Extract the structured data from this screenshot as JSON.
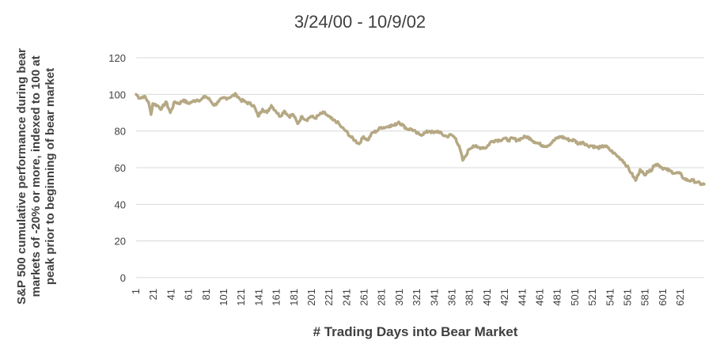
{
  "chart_data": {
    "type": "line",
    "title": "3/24/00 - 10/9/02",
    "xlabel": "# Trading Days into Bear Market",
    "ylabel_lines": [
      "S&P 500 cumulative performance during bear",
      "markets of -20% or more, indexed to 100 at",
      "peak prior to beginning of bear market"
    ],
    "ylim": [
      0,
      120
    ],
    "yticks": [
      "0",
      "20",
      "40",
      "60",
      "80",
      "100",
      "120"
    ],
    "xlim": [
      1,
      648
    ],
    "xticks": [
      "1",
      "21",
      "41",
      "61",
      "81",
      "101",
      "121",
      "141",
      "161",
      "181",
      "201",
      "221",
      "241",
      "261",
      "281",
      "301",
      "321",
      "341",
      "361",
      "381",
      "401",
      "421",
      "441",
      "461",
      "481",
      "501",
      "521",
      "541",
      "561",
      "581",
      "601",
      "621"
    ],
    "grid": "horizontal",
    "line_color": "#b5a883",
    "series": [
      {
        "x": [
          1,
          5,
          10,
          15,
          18,
          20,
          25,
          30,
          35,
          40,
          45,
          50,
          55,
          60,
          65,
          70,
          75,
          80,
          85,
          90,
          95,
          100,
          105,
          110,
          115,
          120,
          125,
          130,
          135,
          140,
          145,
          150,
          155,
          160,
          165,
          170,
          175,
          180,
          185,
          190,
          195,
          200,
          205,
          210,
          215,
          220,
          225,
          230,
          235,
          240,
          245,
          250,
          255,
          260,
          265,
          270,
          275,
          280,
          285,
          290,
          295,
          300,
          305,
          310,
          315,
          320,
          325,
          330,
          335,
          340,
          345,
          350,
          355,
          360,
          365,
          370,
          373,
          376,
          380,
          385,
          390,
          395,
          400,
          405,
          410,
          415,
          420,
          425,
          430,
          435,
          440,
          445,
          450,
          455,
          460,
          465,
          470,
          475,
          480,
          485,
          490,
          495,
          500,
          505,
          510,
          515,
          520,
          525,
          530,
          535,
          540,
          545,
          550,
          555,
          560,
          565,
          570,
          575,
          580,
          583,
          587,
          590,
          595,
          600,
          605,
          610,
          615,
          620,
          625,
          630,
          635,
          640,
          645,
          648
        ],
        "y": [
          100,
          98,
          99,
          96,
          89,
          95,
          94,
          92,
          96,
          90,
          96,
          95,
          97,
          95,
          96,
          97,
          97,
          99,
          97,
          94,
          96,
          98,
          98,
          99,
          100,
          97,
          96,
          95,
          94,
          88,
          92,
          90,
          94,
          91,
          88,
          91,
          88,
          89,
          84,
          88,
          86,
          88,
          87,
          89,
          90,
          88,
          86,
          85,
          82,
          80,
          77,
          75,
          73,
          77,
          75,
          79,
          80,
          82,
          82,
          83,
          83,
          85,
          83,
          81,
          81,
          79,
          78,
          79,
          80,
          79,
          80,
          78,
          77,
          78,
          76,
          70,
          64,
          66,
          70,
          72,
          71,
          71,
          71,
          74,
          75,
          75,
          76,
          75,
          76,
          75,
          76,
          77,
          76,
          74,
          73,
          72,
          72,
          74,
          76,
          77,
          76,
          75,
          75,
          73,
          74,
          72,
          72,
          71,
          71,
          72,
          70,
          68,
          66,
          64,
          61,
          57,
          53,
          59,
          56,
          58,
          58,
          61,
          62,
          60,
          59,
          58,
          57,
          57,
          54,
          53,
          53,
          52,
          51,
          51
        ]
      }
    ]
  }
}
